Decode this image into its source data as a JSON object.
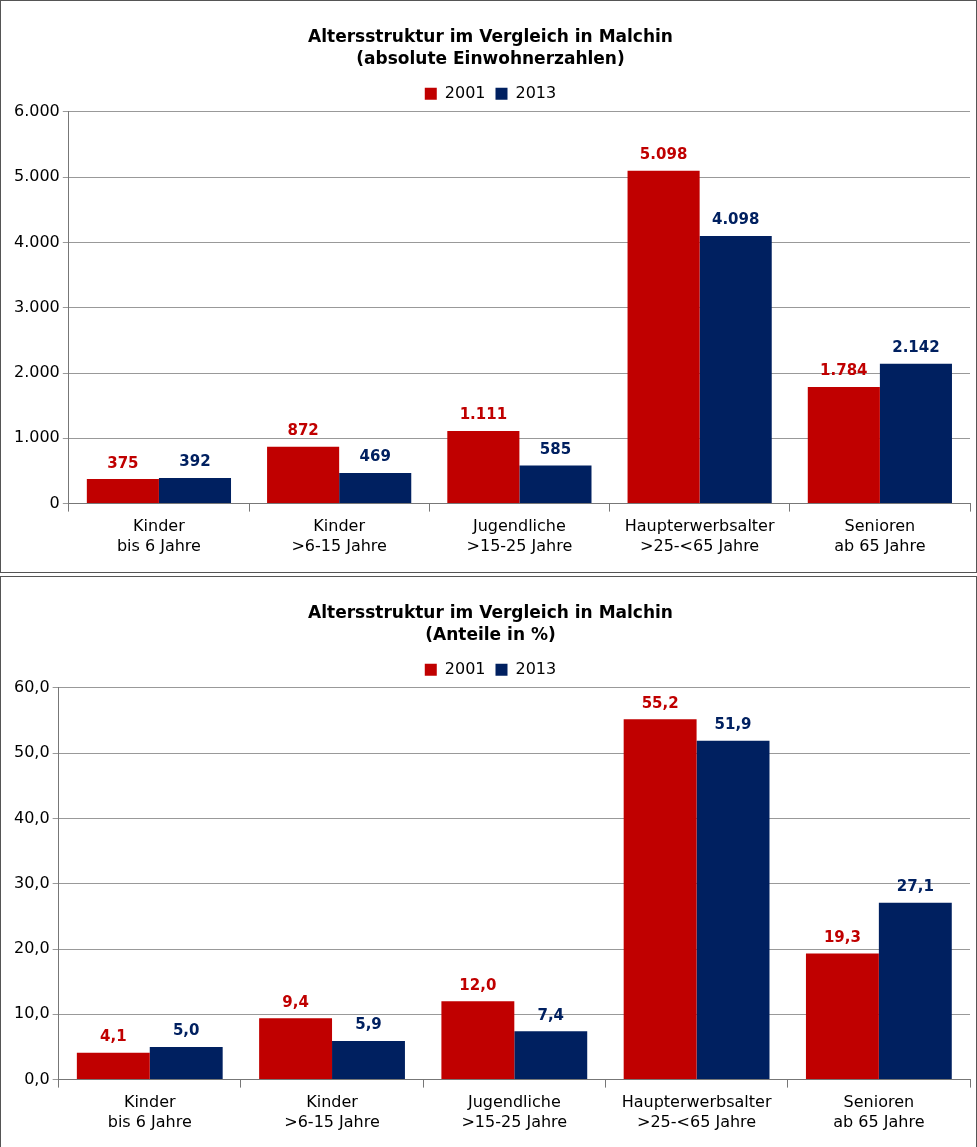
{
  "chart_data": [
    {
      "type": "bar",
      "title": "Altersstruktur im Vergleich in Malchin",
      "subtitle": "(absolute Einwohnerzahlen)",
      "categories": [
        "Kinder\nbis 6 Jahre",
        "Kinder\n>6-15 Jahre",
        "Jugendliche\n>15-25 Jahre",
        "Haupterwerbsalter\n>25-<65 Jahre",
        "Senioren\nab 65 Jahre"
      ],
      "series": [
        {
          "name": "2001",
          "color": "#c00000",
          "values": [
            375,
            872,
            1111,
            5098,
            1784
          ],
          "value_labels": [
            "375",
            "872",
            "1.111",
            "5.098",
            "1.784"
          ]
        },
        {
          "name": "2013",
          "color": "#002060",
          "values": [
            392,
            469,
            585,
            4098,
            2142
          ],
          "value_labels": [
            "392",
            "469",
            "585",
            "4.098",
            "2.142"
          ]
        }
      ],
      "ylim": [
        0,
        6000
      ],
      "yticks": [
        {
          "value": 0,
          "label": "0"
        },
        {
          "value": 1000,
          "label": "1.000"
        },
        {
          "value": 2000,
          "label": "2.000"
        },
        {
          "value": 3000,
          "label": "3.000"
        },
        {
          "value": 4000,
          "label": "4.000"
        },
        {
          "value": 5000,
          "label": "5.000"
        },
        {
          "value": 6000,
          "label": "6.000"
        }
      ],
      "grid": "y",
      "legend": "top"
    },
    {
      "type": "bar",
      "title": "Altersstruktur im Vergleich in Malchin",
      "subtitle": "(Anteile in %)",
      "categories": [
        "Kinder\nbis 6 Jahre",
        "Kinder\n>6-15 Jahre",
        "Jugendliche\n>15-25 Jahre",
        "Haupterwerbsalter\n>25-<65 Jahre",
        "Senioren\nab 65 Jahre"
      ],
      "series": [
        {
          "name": "2001",
          "color": "#c00000",
          "values": [
            4.1,
            9.4,
            12.0,
            55.2,
            19.3
          ],
          "value_labels": [
            "4,1",
            "9,4",
            "12,0",
            "55,2",
            "19,3"
          ]
        },
        {
          "name": "2013",
          "color": "#002060",
          "values": [
            5.0,
            5.9,
            7.4,
            51.9,
            27.1
          ],
          "value_labels": [
            "5,0",
            "5,9",
            "7,4",
            "51,9",
            "27,1"
          ]
        }
      ],
      "ylim": [
        0,
        60
      ],
      "yticks": [
        {
          "value": 0,
          "label": "0,0"
        },
        {
          "value": 10,
          "label": "10,0"
        },
        {
          "value": 20,
          "label": "20,0"
        },
        {
          "value": 30,
          "label": "30,0"
        },
        {
          "value": 40,
          "label": "40,0"
        },
        {
          "value": 50,
          "label": "50,0"
        },
        {
          "value": 60,
          "label": "60,0"
        }
      ],
      "grid": "y",
      "legend": "top"
    }
  ]
}
